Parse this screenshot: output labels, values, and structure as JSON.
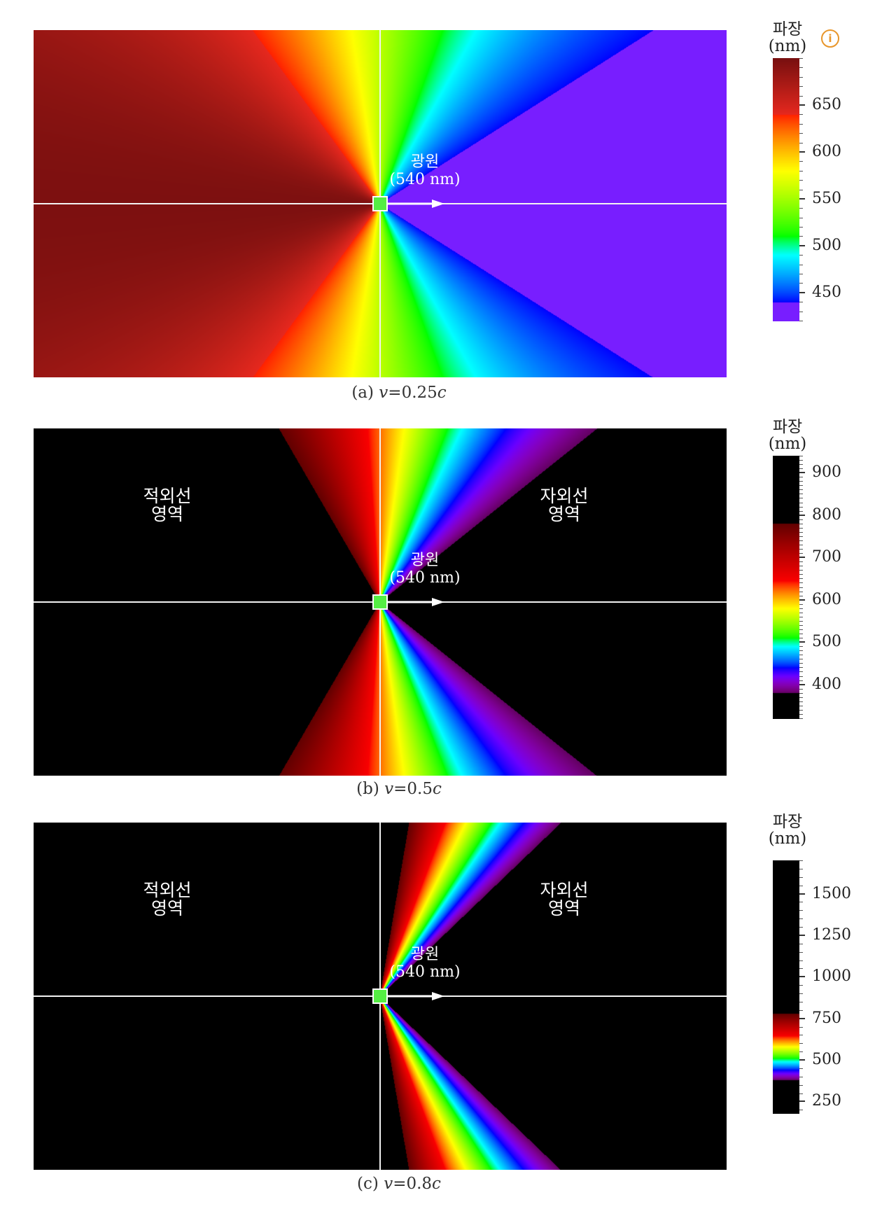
{
  "source_label": {
    "line1": "광원",
    "line2": "(540 nm)"
  },
  "regions": {
    "infrared_line1": "적외선",
    "infrared_line2": "영역",
    "ultraviolet_line1": "자외선",
    "ultraviolet_line2": "영역"
  },
  "colorbar_title": {
    "line1": "파장",
    "line2": "(nm)"
  },
  "info_icon": {
    "glyph": "i",
    "name": "info-icon",
    "color": "#e8962b"
  },
  "panels": [
    {
      "caption_prefix": "(a)",
      "caption_var": "v",
      "caption_eq": "=0.25",
      "caption_c": "c",
      "show_regions": false
    },
    {
      "caption_prefix": "(b)",
      "caption_var": "v",
      "caption_eq": "=0.5",
      "caption_c": "c",
      "show_regions": true
    },
    {
      "caption_prefix": "(c)",
      "caption_var": "v",
      "caption_eq": "=0.8",
      "caption_c": "c",
      "show_regions": true
    }
  ],
  "chart_data": [
    {
      "type": "heatmap",
      "velocity_fraction_c": 0.25,
      "source_wavelength_nm": 540,
      "colorbar": {
        "range": [
          420,
          700
        ],
        "ticks": [
          "450",
          "500",
          "550",
          "600",
          "650"
        ]
      }
    },
    {
      "type": "heatmap",
      "velocity_fraction_c": 0.5,
      "source_wavelength_nm": 540,
      "colorbar": {
        "range": [
          320,
          940
        ],
        "ticks": [
          "400",
          "500",
          "600",
          "700",
          "800",
          "900"
        ]
      }
    },
    {
      "type": "heatmap",
      "velocity_fraction_c": 0.8,
      "source_wavelength_nm": 540,
      "colorbar": {
        "range": [
          180,
          1700
        ],
        "ticks": [
          "250",
          "500",
          "750",
          "1000",
          "1250",
          "1500"
        ]
      }
    }
  ]
}
